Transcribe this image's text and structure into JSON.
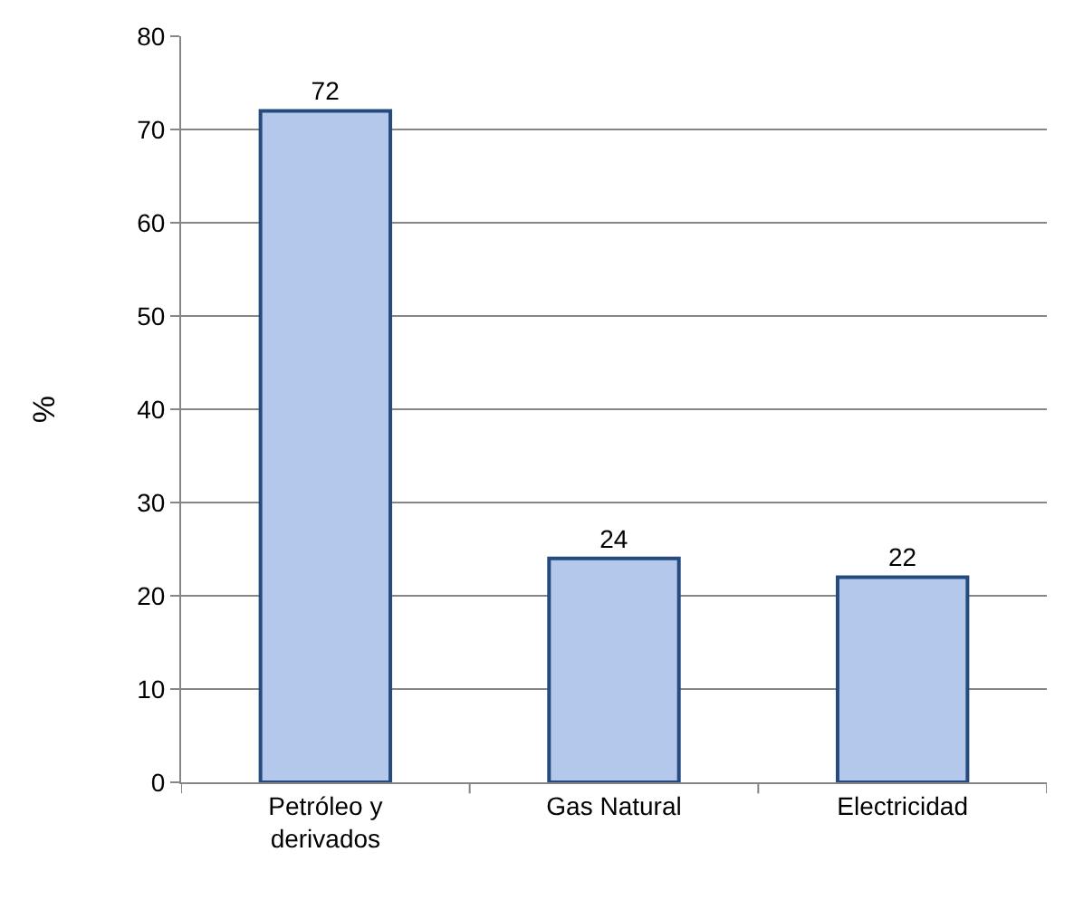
{
  "chart_data": {
    "type": "bar",
    "ylabel": "%",
    "categories": [
      "Petróleo y\nderivados",
      "Gas Natural",
      "Electricidad"
    ],
    "values": [
      72,
      24,
      22
    ],
    "color": "#b4c8ec",
    "ylim": [
      0,
      80
    ],
    "yticks": [
      0,
      10,
      20,
      30,
      40,
      50,
      60,
      70,
      80
    ],
    "grid": "y",
    "data_labels": true
  }
}
